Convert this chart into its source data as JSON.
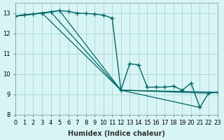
{
  "xlabel": "Humidex (Indice chaleur)",
  "ylabel": "",
  "bg_color": "#d8f5f5",
  "grid_color": "#b0d8d8",
  "line_color": "#006666",
  "xlim": [
    0,
    23
  ],
  "ylim": [
    8,
    13.5
  ],
  "yticks": [
    8,
    9,
    10,
    11,
    12,
    13
  ],
  "xticks": [
    0,
    1,
    2,
    3,
    4,
    5,
    6,
    7,
    8,
    9,
    10,
    11,
    12,
    13,
    14,
    15,
    16,
    17,
    18,
    19,
    20,
    21,
    22,
    23
  ],
  "series_marked": {
    "x": [
      0,
      1,
      2,
      3,
      4,
      5,
      6,
      7,
      8,
      9,
      10,
      11,
      12,
      13,
      14,
      15,
      16,
      17,
      18,
      19,
      20,
      21,
      22,
      23
    ],
    "y": [
      12.85,
      12.92,
      12.95,
      13.0,
      13.05,
      13.12,
      13.08,
      13.0,
      12.98,
      12.95,
      12.9,
      12.75,
      9.2,
      10.5,
      10.45,
      9.35,
      9.35,
      9.35,
      9.4,
      9.2,
      9.55,
      8.35,
      9.05,
      9.1
    ]
  },
  "series_lines": [
    {
      "x": [
        0,
        5,
        12,
        21
      ],
      "y": [
        12.85,
        13.12,
        9.2,
        8.35
      ]
    },
    {
      "x": [
        0,
        4,
        12,
        23
      ],
      "y": [
        12.85,
        13.05,
        9.2,
        9.1
      ]
    },
    {
      "x": [
        0,
        3,
        12,
        22
      ],
      "y": [
        12.85,
        13.0,
        9.2,
        9.05
      ]
    }
  ]
}
